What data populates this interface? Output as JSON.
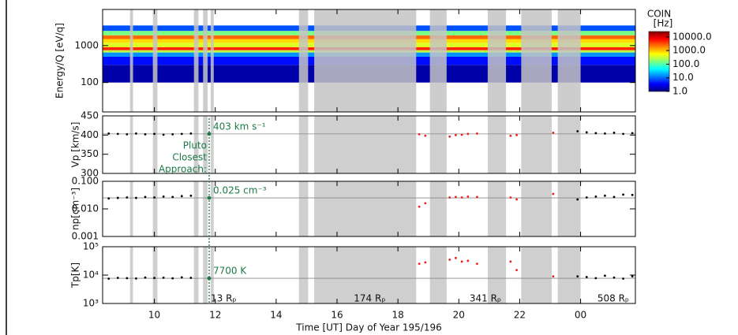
{
  "x_axis": {
    "label": "Time [UT] Day of Year 195/196",
    "xlim": [
      8.3,
      25.8
    ],
    "xticks": [
      10,
      12,
      14,
      16,
      18,
      20,
      22,
      {
        "value": 24,
        "label": "00"
      }
    ]
  },
  "gaps": [
    [
      9.2,
      9.3
    ],
    [
      9.95,
      10.1
    ],
    [
      11.3,
      11.45
    ],
    [
      11.6,
      11.75
    ],
    [
      11.85,
      11.95
    ],
    [
      14.75,
      15.05
    ],
    [
      15.25,
      18.6
    ],
    [
      19.05,
      19.6
    ],
    [
      20.95,
      21.55
    ],
    [
      22.05,
      23.05
    ],
    [
      23.25,
      24.0
    ]
  ],
  "closest_approach": {
    "x": 11.8,
    "lines": [
      "Pluto",
      "Closest",
      "Approach:"
    ]
  },
  "distance_labels": [
    {
      "x": 11.8,
      "label": "13 Rₚ"
    },
    {
      "x": 16.5,
      "label": "174 Rₚ"
    },
    {
      "x": 20.3,
      "label": "341 Rₚ"
    },
    {
      "x": 24.5,
      "label": "508 Rₚ"
    }
  ],
  "chart_data": [
    {
      "type": "heatmap",
      "ylabel": "Energy/Q [eV/q]",
      "log": true,
      "ylim": [
        16,
        9500
      ],
      "yticks": [
        100,
        1000
      ],
      "energy_bins": [
        100,
        300,
        500,
        650,
        750,
        900,
        1200,
        1500,
        1900,
        2500,
        3500
      ],
      "rates": [
        1.5,
        4,
        15,
        300,
        5000,
        400,
        800,
        2500,
        150,
        8
      ],
      "colorbar": {
        "title": "COIN",
        "unit": "[Hz]",
        "clim": [
          1,
          25000
        ],
        "cticks": [
          {
            "value": 10000,
            "label": "10000.0"
          },
          {
            "value": 1000,
            "label": "1000.0"
          },
          {
            "value": 100,
            "label": "100.0"
          },
          {
            "value": 10,
            "label": "10.0"
          },
          {
            "value": 1,
            "label": "1.0"
          }
        ]
      }
    },
    {
      "type": "scatter",
      "ylabel": "Vp [km/s]",
      "log": false,
      "ylim": [
        300,
        450
      ],
      "yticks": [
        300,
        350,
        400,
        450
      ],
      "ref": {
        "value": 403,
        "label": "403 km s⁻¹"
      },
      "series": [
        {
          "color": "#000000",
          "x": [
            8.5,
            8.8,
            9.1,
            9.4,
            9.7,
            10.0,
            10.3,
            10.6,
            10.9,
            11.2
          ],
          "values": [
            404,
            403,
            402,
            404,
            402,
            403,
            401,
            402,
            403,
            404
          ]
        },
        {
          "color": "#e8201c",
          "x": [
            18.7,
            18.9,
            19.7,
            19.9,
            20.1,
            20.3,
            20.6,
            21.7,
            21.9,
            23.1
          ],
          "values": [
            402,
            398,
            396,
            400,
            401,
            403,
            404,
            398,
            400,
            406
          ]
        },
        {
          "color": "#000000",
          "x": [
            23.9,
            24.2,
            24.5,
            24.8,
            25.1,
            25.4,
            25.7
          ],
          "values": [
            410,
            407,
            405,
            404,
            406,
            403,
            405
          ]
        }
      ]
    },
    {
      "type": "scatter",
      "ylabel": "np[cm⁻³]",
      "log": true,
      "ylim": [
        0.001,
        0.1
      ],
      "yticks": [
        {
          "value": 0.001,
          "label": "0.001"
        },
        {
          "value": 0.01,
          "label": "0.010"
        },
        {
          "value": 0.1,
          "label": "0.100"
        }
      ],
      "ref": {
        "value": 0.025,
        "label": "0.025 cm⁻³"
      },
      "series": [
        {
          "color": "#000000",
          "x": [
            8.5,
            8.8,
            9.1,
            9.4,
            9.7,
            10.0,
            10.3,
            10.6,
            10.9,
            11.2
          ],
          "values": [
            0.024,
            0.025,
            0.026,
            0.025,
            0.027,
            0.026,
            0.028,
            0.027,
            0.029,
            0.03
          ]
        },
        {
          "color": "#e8201c",
          "x": [
            18.7,
            18.9,
            19.7,
            19.9,
            20.1,
            20.3,
            20.6,
            21.7,
            21.9,
            23.1
          ],
          "values": [
            0.012,
            0.016,
            0.026,
            0.027,
            0.026,
            0.028,
            0.027,
            0.026,
            0.022,
            0.035
          ]
        },
        {
          "color": "#000000",
          "x": [
            23.9,
            24.2,
            24.5,
            24.8,
            25.1,
            25.4,
            25.7
          ],
          "values": [
            0.022,
            0.026,
            0.028,
            0.03,
            0.027,
            0.033,
            0.032
          ]
        }
      ]
    },
    {
      "type": "scatter",
      "ylabel": "Tp[K]",
      "log": true,
      "ylim": [
        1000,
        100000
      ],
      "yticks": [
        {
          "value": 1000,
          "label": "10³"
        },
        {
          "value": 10000,
          "label": "10⁴"
        },
        {
          "value": 100000,
          "label": "10⁵"
        }
      ],
      "ref": {
        "value": 7700,
        "label": "7700 K"
      },
      "series": [
        {
          "color": "#000000",
          "x": [
            8.5,
            8.8,
            9.1,
            9.4,
            9.7,
            10.0,
            10.3,
            10.6,
            10.9,
            11.2
          ],
          "values": [
            7500,
            8000,
            7800,
            7600,
            8200,
            7900,
            8100,
            7700,
            8300,
            8000
          ]
        },
        {
          "color": "#e8201c",
          "x": [
            18.7,
            18.9,
            19.7,
            19.9,
            20.1,
            20.3,
            20.6,
            21.7,
            21.9,
            23.1
          ],
          "values": [
            25000,
            28000,
            35000,
            40000,
            30000,
            32000,
            25000,
            30000,
            15000,
            9000
          ]
        },
        {
          "color": "#000000",
          "x": [
            23.9,
            24.2,
            24.5,
            24.8,
            25.1,
            25.4,
            25.7
          ],
          "values": [
            9000,
            8500,
            7800,
            9500,
            8200,
            7500,
            9000
          ]
        }
      ]
    }
  ]
}
